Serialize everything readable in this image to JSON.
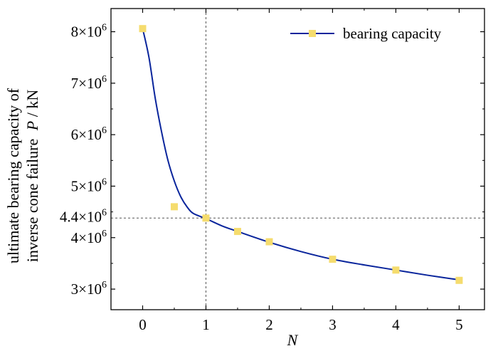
{
  "chart_data": {
    "type": "scatter",
    "title": "",
    "xlabel": "N",
    "ylabel_line1": "ultimate bearing capacity of",
    "ylabel_line2": "inverse cone failure",
    "ylabel_var": "P",
    "ylabel_unit": " / kN",
    "xlim": [
      -0.5,
      5.4
    ],
    "ylim": [
      2.6,
      8.45
    ],
    "x_ticks": [
      {
        "value": 0,
        "label": "0"
      },
      {
        "value": 1,
        "label": "1"
      },
      {
        "value": 2,
        "label": "2"
      },
      {
        "value": 3,
        "label": "3"
      },
      {
        "value": 4,
        "label": "4"
      },
      {
        "value": 5,
        "label": "5"
      }
    ],
    "y_ticks": [
      {
        "value": 3,
        "mant": "3",
        "exp": "6"
      },
      {
        "value": 4,
        "mant": "4",
        "exp": "6"
      },
      {
        "value": 5,
        "mant": "5",
        "exp": "6"
      },
      {
        "value": 6,
        "mant": "6",
        "exp": "6"
      },
      {
        "value": 7,
        "mant": "7",
        "exp": "6"
      },
      {
        "value": 8,
        "mant": "8",
        "exp": "6"
      }
    ],
    "y_unit_multiplier": 1000000,
    "reference_lines": {
      "x": 1,
      "y": 4.38,
      "y_label_mant": "4.4",
      "y_label_exp": "6"
    },
    "series": [
      {
        "name": "bearing capacity",
        "marker_color": "#f5dc6e",
        "line_color": "#0a259c",
        "points": [
          {
            "x": 0,
            "y": 8.06
          },
          {
            "x": 0.5,
            "y": 4.6
          },
          {
            "x": 1,
            "y": 4.38
          },
          {
            "x": 1.5,
            "y": 4.12
          },
          {
            "x": 2,
            "y": 3.92
          },
          {
            "x": 3,
            "y": 3.58
          },
          {
            "x": 4,
            "y": 3.37
          },
          {
            "x": 5,
            "y": 3.17
          }
        ],
        "fit_curve": [
          {
            "x": 0,
            "y": 8.06
          },
          {
            "x": 0.1,
            "y": 7.5
          },
          {
            "x": 0.2,
            "y": 6.7
          },
          {
            "x": 0.3,
            "y": 6.05
          },
          {
            "x": 0.4,
            "y": 5.5
          },
          {
            "x": 0.5,
            "y": 5.1
          },
          {
            "x": 0.6,
            "y": 4.8
          },
          {
            "x": 0.7,
            "y": 4.6
          },
          {
            "x": 0.8,
            "y": 4.47
          },
          {
            "x": 1,
            "y": 4.37
          },
          {
            "x": 1.25,
            "y": 4.23
          },
          {
            "x": 1.5,
            "y": 4.12
          },
          {
            "x": 2,
            "y": 3.91
          },
          {
            "x": 2.5,
            "y": 3.73
          },
          {
            "x": 3,
            "y": 3.58
          },
          {
            "x": 3.5,
            "y": 3.47
          },
          {
            "x": 4,
            "y": 3.37
          },
          {
            "x": 4.5,
            "y": 3.27
          },
          {
            "x": 5,
            "y": 3.18
          }
        ]
      }
    ],
    "legend": {
      "position": "top-right",
      "label": "bearing capacity"
    }
  }
}
